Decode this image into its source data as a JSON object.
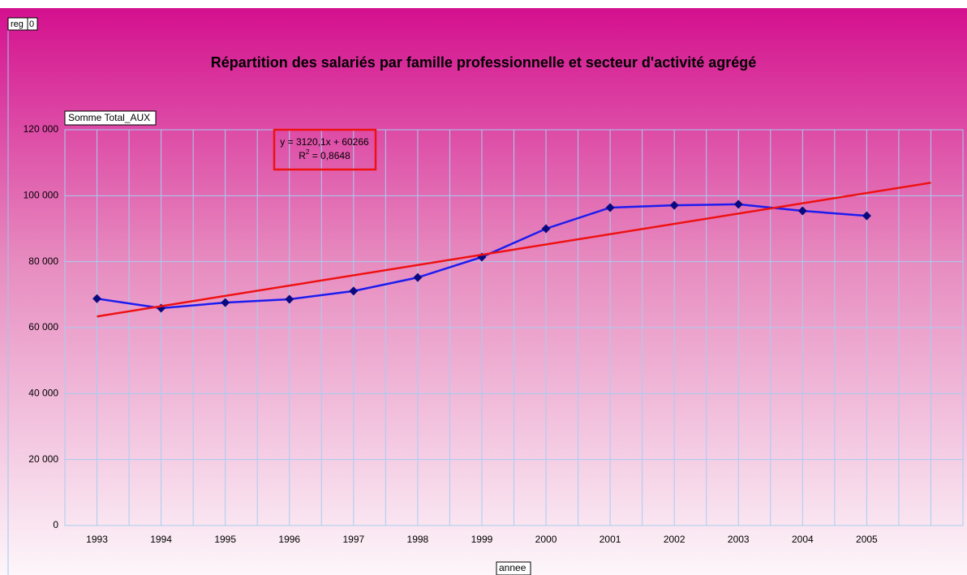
{
  "header": {
    "field": "reg",
    "field_value": "0"
  },
  "chart_data": {
    "type": "line",
    "title": "Répartition des salariés par famille professionnelle et secteur d'activité agrégé",
    "y_label": "Somme Total_AUX",
    "x_label": "annee",
    "categories": [
      "1993",
      "1994",
      "1995",
      "1996",
      "1997",
      "1998",
      "1999",
      "2000",
      "2001",
      "2002",
      "2003",
      "2004",
      "2005",
      null
    ],
    "series": [
      {
        "color": "#1c1cf0",
        "marker_color": "#0a0a80",
        "values": [
          68800,
          65900,
          67600,
          68600,
          71100,
          75200,
          81400,
          90000,
          96400,
          97100,
          97400,
          95400,
          93900,
          null
        ]
      }
    ],
    "trendline": {
      "color": "#ee1111",
      "slope": 3120.1,
      "intercept": 60266,
      "equation": "y = 3120,1x + 60266",
      "r2_label": "R",
      "r2_sup": "2",
      "r2_value": " = 0,8648"
    },
    "ylim": [
      0,
      120000
    ],
    "yticks": [
      0,
      {
        "value": 20000,
        "label": "20 000"
      },
      {
        "value": 40000,
        "label": "40 000"
      },
      {
        "value": 60000,
        "label": "60 000"
      },
      {
        "value": 80000,
        "label": "80 000"
      },
      {
        "value": 100000,
        "label": "100 000"
      },
      {
        "value": 120000,
        "label": "120 000"
      }
    ],
    "grid": true
  }
}
